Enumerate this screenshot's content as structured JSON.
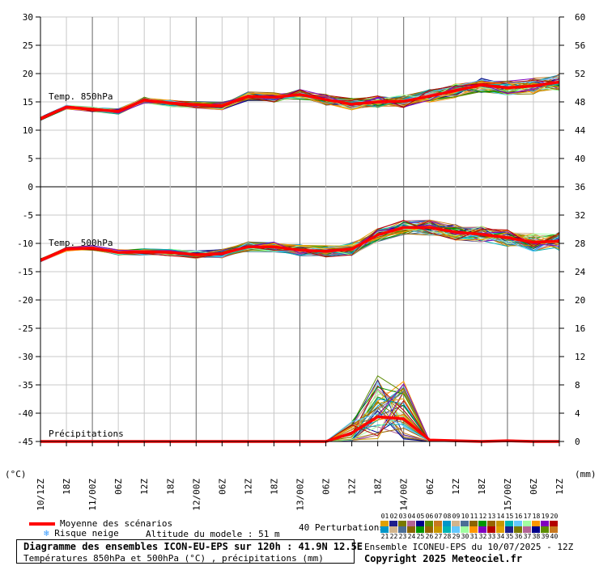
{
  "chart_data": {
    "type": "line",
    "left_axis_unit": "(°C)",
    "right_axis_unit": "(mm)",
    "left_ticks": [
      30,
      25,
      20,
      15,
      10,
      5,
      0,
      -5,
      -10,
      -15,
      -20,
      -25,
      -30,
      -35,
      -40,
      -45
    ],
    "right_ticks_upper": [
      60,
      56,
      52,
      48,
      44,
      40,
      36
    ],
    "right_ticks_lower": [
      32,
      28,
      24,
      20,
      16,
      12,
      8,
      4,
      0
    ],
    "x_labels": [
      "10/12Z",
      "18Z",
      "11/00Z",
      "06Z",
      "12Z",
      "18Z",
      "12/00Z",
      "06Z",
      "12Z",
      "18Z",
      "13/00Z",
      "06Z",
      "12Z",
      "18Z",
      "14/00Z",
      "06Z",
      "12Z",
      "18Z",
      "15/00Z",
      "06Z",
      "12Z"
    ],
    "x_hours": [
      0,
      6,
      12,
      18,
      24,
      30,
      36,
      42,
      48,
      54,
      60,
      66,
      72,
      78,
      84,
      90,
      96,
      102,
      108,
      114,
      120
    ],
    "panel_labels": {
      "t850": "Temp. 850hPa",
      "t500": "Temp. 500hPa",
      "precip": "Précipitations"
    },
    "series": [
      {
        "name": "Moyenne des scénarios",
        "color": "#ff0000",
        "t850": [
          12.0,
          14.1,
          13.7,
          13.3,
          15.3,
          14.8,
          14.5,
          14.3,
          16.0,
          15.8,
          16.3,
          15.4,
          14.6,
          15.0,
          15.1,
          16.0,
          17.0,
          18.0,
          17.5,
          17.8,
          18.5
        ],
        "t500": [
          -13.0,
          -11.0,
          -10.8,
          -11.6,
          -11.5,
          -11.6,
          -12.0,
          -11.8,
          -10.6,
          -10.6,
          -11.2,
          -11.4,
          -11.0,
          -8.5,
          -7.2,
          -7.2,
          -8.0,
          -8.4,
          -9.0,
          -9.8,
          -9.6
        ],
        "precip": [
          0,
          0,
          0,
          0,
          0,
          0,
          0,
          0,
          0,
          0,
          0,
          0,
          1.2,
          3.5,
          3.2,
          0.2,
          0.1,
          0,
          0.1,
          0,
          0
        ]
      }
    ],
    "perturbation_count": 40,
    "perturbation_palette": [
      "#e0a000",
      "#1e1e8c",
      "#7a7a00",
      "#b46496",
      "#00008b",
      "#5a8c00",
      "#c8781e",
      "#0096c8",
      "#d2b48c",
      "#4b6e96",
      "#8c6400",
      "#009600",
      "#966400",
      "#c89600",
      "#00b4b4",
      "#64c8ff",
      "#a0ffa0",
      "#ff9600",
      "#8000c0",
      "#b40000"
    ],
    "legend": {
      "mean": "Moyenne des scénarios",
      "snow": "Risque neige",
      "altitude": "Altitude du modele : 51 m",
      "perturbations": "40 Perturbations",
      "pert_numbers_row1": [
        "01",
        "02",
        "03",
        "04",
        "05",
        "06",
        "07",
        "08",
        "09",
        "10",
        "11",
        "12",
        "13",
        "14",
        "15",
        "16",
        "17",
        "18",
        "19",
        "20"
      ],
      "pert_numbers_row2": [
        "21",
        "22",
        "23",
        "24",
        "25",
        "26",
        "27",
        "28",
        "29",
        "30",
        "31",
        "32",
        "33",
        "34",
        "35",
        "36",
        "37",
        "38",
        "39",
        "40"
      ]
    },
    "caption": {
      "title": "Diagramme des ensembles ICON-EU-EPS sur 120h : 41.9N 12.5E",
      "subtitle": "Températures 850hPa et 500hPa (°C) , précipitations (mm)",
      "run": "Ensemble ICONEU-EPS du 10/07/2025 - 12Z",
      "copyright": "Copyright 2025 Meteociel.fr"
    }
  }
}
